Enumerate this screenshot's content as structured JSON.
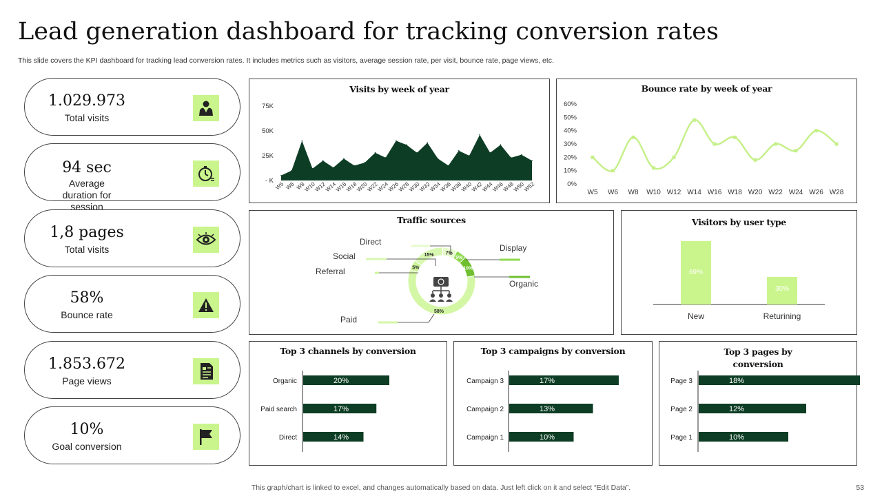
{
  "header": {
    "title": "Lead generation dashboard for tracking conversion rates",
    "subtitle": "This slide covers the KPI dashboard for tracking lead conversion rates. It includes metrics such as visitors, average session rate, per visit, bounce rate, page views, etc."
  },
  "kpis": [
    {
      "value": "1.029.973",
      "label": "Total visits",
      "icon": "person-icon"
    },
    {
      "value": "94 sec",
      "label": "Average duration for session",
      "icon": "stopwatch-icon"
    },
    {
      "value": "1,8 pages",
      "label": "Total visits",
      "icon": "eye-icon"
    },
    {
      "value": "58%",
      "label": "Bounce rate",
      "icon": "warning-icon"
    },
    {
      "value": "1.853.672",
      "label": "Page views",
      "icon": "document-icon"
    },
    {
      "value": "10%",
      "label": "Goal conversion",
      "icon": "flag-icon"
    }
  ],
  "colors": {
    "dark_green": "#0d3d24",
    "light_green": "#c9f58c",
    "mid_green": "#7ac943",
    "line_green": "#c6f08a"
  },
  "chart_data": [
    {
      "type": "area",
      "title": "Visits by week of year",
      "categories": [
        "W5",
        "W6",
        "W8",
        "W10",
        "W12",
        "W14",
        "W16",
        "W18",
        "W20",
        "W22",
        "W24",
        "W26",
        "W28",
        "W30",
        "W32",
        "W34",
        "W36",
        "W38",
        "W40",
        "W42",
        "W44",
        "W46",
        "W48",
        "W50",
        "W52"
      ],
      "values": [
        5000,
        10000,
        40000,
        12000,
        20000,
        13000,
        22000,
        15000,
        18000,
        28000,
        23000,
        40000,
        36000,
        28000,
        38000,
        22000,
        15000,
        30000,
        25000,
        46000,
        28000,
        36000,
        23000,
        26000,
        20000
      ],
      "yticks": [
        "- K",
        "25K",
        "50K",
        "75K"
      ],
      "ylim": [
        0,
        75000
      ]
    },
    {
      "type": "line",
      "title": "Bounce rate by week of year",
      "categories": [
        "W5",
        "W6",
        "W8",
        "W10",
        "W12",
        "W14",
        "W16",
        "W18",
        "W20",
        "W22",
        "W24",
        "W26",
        "W28"
      ],
      "values": [
        20,
        10,
        35,
        12,
        20,
        48,
        30,
        35,
        18,
        30,
        25,
        40,
        30
      ],
      "yticks": [
        "0%",
        "10%",
        "20%",
        "30%",
        "40%",
        "50%",
        "60%"
      ],
      "ylim": [
        0,
        60
      ]
    },
    {
      "type": "pie",
      "title": "Traffic sources",
      "slices": [
        {
          "name": "Paid",
          "value": 58,
          "label": "58%"
        },
        {
          "name": "Referral",
          "value": 5,
          "label": "5%"
        },
        {
          "name": "Social",
          "value": 15,
          "label": "15%"
        },
        {
          "name": "Direct",
          "value": 7,
          "label": "7%"
        },
        {
          "name": "Display",
          "value": 5,
          "label": "5%"
        },
        {
          "name": "Organic",
          "value": 10,
          "label": "10%"
        }
      ]
    },
    {
      "type": "bar",
      "title": "Visitors by user type",
      "categories": [
        "New",
        "Returining"
      ],
      "values": [
        69,
        30
      ],
      "labels": [
        "69%",
        "30%"
      ]
    },
    {
      "type": "bar",
      "orientation": "horizontal",
      "title": "Top 3 channels by conversion",
      "categories": [
        "Organic",
        "Paid search",
        "Direct"
      ],
      "values": [
        20,
        17,
        14
      ],
      "labels": [
        "20%",
        "17%",
        "14%"
      ]
    },
    {
      "type": "bar",
      "orientation": "horizontal",
      "title": "Top 3 campaigns by conversion",
      "categories": [
        "Campaign 3",
        "Campaign 2",
        "Campaign 1"
      ],
      "values": [
        17,
        13,
        10
      ],
      "labels": [
        "17%",
        "13%",
        "10%"
      ]
    },
    {
      "type": "bar",
      "orientation": "horizontal",
      "title": "Top 3 pages by conversion",
      "categories": [
        "Page 3",
        "Page 2",
        "Page 1"
      ],
      "values": [
        18,
        12,
        10
      ],
      "labels": [
        "18%",
        "12%",
        "10%"
      ]
    }
  ],
  "footer": {
    "note": "This graph/chart is linked to excel,  and changes automatically based on data. Just left click on it and select “Edit Data”.",
    "page_number": "53"
  }
}
